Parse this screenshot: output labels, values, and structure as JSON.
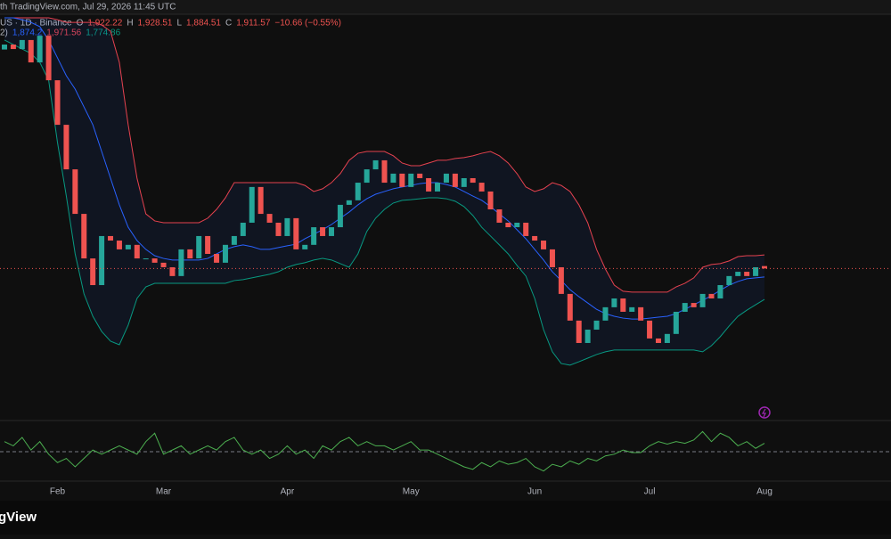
{
  "header": {
    "published": "th TradingView.com, Jul 29, 2026 11:45 UTC",
    "symbol": "US · 1D · Binance",
    "ohlc": [
      {
        "key": "O",
        "text": "1,922.22"
      },
      {
        "key": "H",
        "text": "1,928.51"
      },
      {
        "key": "L",
        "text": "1,884.51"
      },
      {
        "key": "C",
        "text": "1,911.57"
      }
    ],
    "change": "−10.66 (−0.55%)",
    "bb_label": "2)",
    "bb_values": [
      "1,874.2",
      "1,971.56",
      "1,774.86"
    ]
  },
  "logo": "gView",
  "chart_data": {
    "type": "candlestick",
    "up_color": "#26a69a",
    "down_color": "#ef5350",
    "categories": [
      null,
      null,
      null,
      null,
      null,
      null,
      "Feb",
      null,
      null,
      null,
      null,
      null,
      null,
      null,
      null,
      null,
      null,
      null,
      "Mar",
      null,
      null,
      null,
      null,
      null,
      null,
      null,
      null,
      null,
      null,
      null,
      null,
      null,
      "Apr",
      null,
      null,
      null,
      null,
      null,
      null,
      null,
      null,
      null,
      null,
      null,
      null,
      null,
      "May",
      null,
      null,
      null,
      null,
      null,
      null,
      null,
      null,
      null,
      null,
      null,
      null,
      null,
      "Jun",
      null,
      null,
      null,
      null,
      null,
      null,
      null,
      null,
      null,
      null,
      null,
      null,
      "Jul",
      null,
      null,
      null,
      null,
      null,
      null,
      null,
      null,
      null,
      null,
      null,
      null,
      "Aug"
    ],
    "open": [
      2880,
      2902,
      2882,
      2922,
      2823,
      2941,
      2744,
      2547,
      2350,
      2153,
      1956,
      1838,
      2055,
      2035,
      1996,
      2016,
      1956,
      1956,
      1937,
      1917,
      1878,
      1996,
      1956,
      2055,
      1976,
      1937,
      2016,
      2055,
      2114,
      2272,
      2153,
      2114,
      2055,
      2134,
      1996,
      2016,
      2094,
      2055,
      2094,
      2193,
      2213,
      2291,
      2350,
      2390,
      2291,
      2331,
      2272,
      2331,
      2311,
      2252,
      2291,
      2331,
      2272,
      2311,
      2291,
      2252,
      2173,
      2114,
      2094,
      2114,
      2055,
      2035,
      1996,
      1917,
      1799,
      1681,
      1582,
      1641,
      1681,
      1740,
      1779,
      1720,
      1740,
      1681,
      1602,
      1582,
      1622,
      1720,
      1759,
      1740,
      1799,
      1779,
      1838,
      1878,
      1897,
      1878,
      1922.22
    ],
    "close": [
      2902,
      2882,
      2922,
      2823,
      2941,
      2744,
      2547,
      2350,
      2153,
      1956,
      1838,
      2055,
      2035,
      1996,
      2016,
      1956,
      1956,
      1937,
      1917,
      1878,
      1996,
      1956,
      2055,
      1976,
      1937,
      2016,
      2055,
      2114,
      2272,
      2153,
      2114,
      2055,
      2134,
      1996,
      2016,
      2094,
      2055,
      2094,
      2193,
      2213,
      2291,
      2350,
      2390,
      2291,
      2331,
      2272,
      2331,
      2311,
      2252,
      2291,
      2331,
      2272,
      2311,
      2291,
      2252,
      2173,
      2114,
      2094,
      2114,
      2055,
      2035,
      1996,
      1917,
      1799,
      1681,
      1582,
      1641,
      1681,
      1740,
      1779,
      1720,
      1740,
      1681,
      1602,
      1582,
      1622,
      1720,
      1759,
      1740,
      1799,
      1779,
      1838,
      1878,
      1897,
      1878,
      1917,
      1911.57
    ],
    "bands": [
      {
        "name": "upper",
        "color": "#e5424f",
        "values": [
          3020,
          3020,
          3020,
          3020,
          3020,
          3020,
          3012,
          3000,
          3000,
          3000,
          3000,
          2989,
          2961,
          2823,
          2547,
          2311,
          2153,
          2122,
          2114,
          2114,
          2114,
          2114,
          2114,
          2134,
          2173,
          2224,
          2291,
          2291,
          2291,
          2291,
          2291,
          2291,
          2291,
          2291,
          2279,
          2252,
          2264,
          2291,
          2331,
          2390,
          2421,
          2429,
          2429,
          2429,
          2410,
          2378,
          2366,
          2366,
          2378,
          2390,
          2390,
          2398,
          2402,
          2410,
          2421,
          2429,
          2410,
          2378,
          2331,
          2272,
          2252,
          2264,
          2291,
          2279,
          2252,
          2193,
          2114,
          1996,
          1909,
          1838,
          1811,
          1807,
          1807,
          1807,
          1807,
          1807,
          1830,
          1846,
          1870,
          1917,
          1929,
          1933,
          1945,
          1964,
          1968,
          1968,
          1971.56
        ]
      },
      {
        "name": "middle",
        "color": "#2962ff",
        "values": [
          3020,
          3020,
          3012,
          3000,
          2981,
          2922,
          2843,
          2764,
          2705,
          2626,
          2547,
          2429,
          2311,
          2193,
          2094,
          2035,
          1996,
          1968,
          1956,
          1949,
          1949,
          1949,
          1949,
          1956,
          1976,
          1996,
          2008,
          2016,
          2008,
          1996,
          1996,
          2004,
          2012,
          2019,
          2043,
          2063,
          2083,
          2106,
          2134,
          2161,
          2193,
          2220,
          2240,
          2252,
          2264,
          2272,
          2279,
          2287,
          2291,
          2291,
          2283,
          2272,
          2252,
          2232,
          2213,
          2185,
          2153,
          2122,
          2083,
          2043,
          1996,
          1949,
          1897,
          1858,
          1818,
          1787,
          1759,
          1731,
          1712,
          1700,
          1692,
          1688,
          1688,
          1692,
          1696,
          1700,
          1712,
          1731,
          1751,
          1771,
          1791,
          1815,
          1838,
          1854,
          1866,
          1870,
          1874.2
        ]
      },
      {
        "name": "lower",
        "color": "#089981",
        "values": [
          2922,
          2902,
          2882,
          2863,
          2823,
          2744,
          2469,
          2232,
          1976,
          1799,
          1700,
          1633,
          1590,
          1574,
          1661,
          1779,
          1830,
          1846,
          1846,
          1846,
          1846,
          1846,
          1846,
          1846,
          1846,
          1846,
          1858,
          1862,
          1870,
          1878,
          1886,
          1897,
          1917,
          1929,
          1937,
          1949,
          1956,
          1949,
          1933,
          1917,
          1976,
          2075,
          2134,
          2173,
          2201,
          2213,
          2216,
          2220,
          2224,
          2224,
          2220,
          2209,
          2185,
          2146,
          2094,
          2055,
          2016,
          1976,
          1925,
          1878,
          1779,
          1641,
          1543,
          1491,
          1484,
          1499,
          1515,
          1531,
          1543,
          1551,
          1551,
          1551,
          1551,
          1551,
          1551,
          1551,
          1551,
          1551,
          1551,
          1543,
          1570,
          1610,
          1657,
          1700,
          1727,
          1751,
          1774.86
        ]
      }
    ],
    "ylim": [
      1247,
      3032
    ],
    "oscillator": {
      "color": "#4caf50",
      "level": 50,
      "ylim": [
        15,
        85
      ],
      "values": [
        62,
        57,
        67,
        52,
        62,
        47,
        37,
        42,
        32,
        42,
        52,
        47,
        52,
        57,
        52,
        47,
        62,
        72,
        47,
        52,
        57,
        47,
        52,
        57,
        52,
        62,
        67,
        52,
        47,
        52,
        42,
        47,
        57,
        47,
        52,
        42,
        57,
        52,
        62,
        67,
        57,
        62,
        57,
        57,
        52,
        57,
        62,
        52,
        52,
        47,
        42,
        37,
        32,
        29,
        37,
        32,
        39,
        35,
        37,
        42,
        32,
        27,
        35,
        32,
        39,
        35,
        42,
        39,
        45,
        47,
        52,
        49,
        49,
        57,
        62,
        59,
        62,
        60,
        64,
        74,
        62,
        72,
        67,
        57,
        62,
        54,
        60
      ]
    }
  }
}
